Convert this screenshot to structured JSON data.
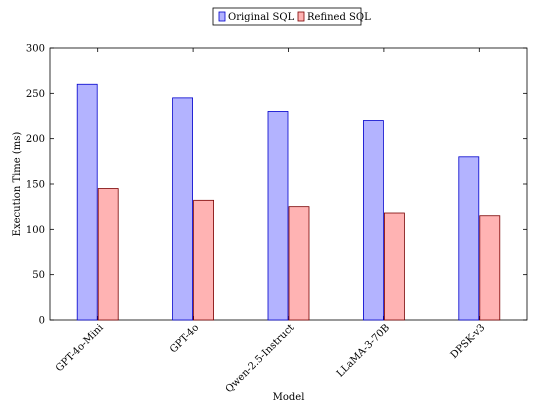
{
  "chart_data": {
    "type": "bar",
    "categories": [
      "GPT-4o-Mini",
      "GPT-4o",
      "Qwen-2.5-Instruct",
      "LLaMA-3-70B",
      "DPSK-v3"
    ],
    "series": [
      {
        "name": "Original SQL",
        "values": [
          260,
          245,
          230,
          220,
          180
        ],
        "color": "#b3b3ff",
        "stroke": "#0000cc"
      },
      {
        "name": "Refined SQL",
        "values": [
          145,
          132,
          125,
          118,
          115
        ],
        "color": "#ffb3b3",
        "stroke": "#7a0000"
      }
    ],
    "xlabel": "Model",
    "ylabel": "Execution Time (ms)",
    "ylim": [
      0,
      300
    ],
    "yticks": [
      0,
      50,
      100,
      150,
      200,
      250,
      300
    ],
    "legend_position": "top-center",
    "grid": false
  }
}
